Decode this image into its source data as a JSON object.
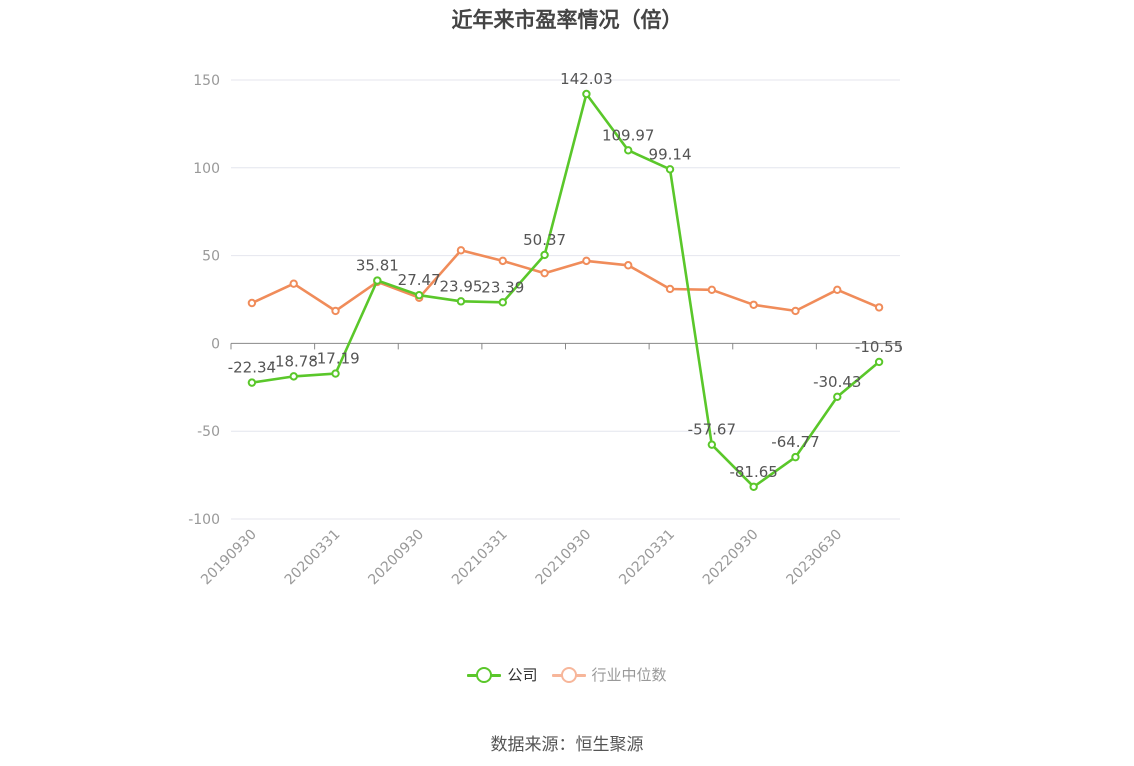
{
  "title": "近年来市盈率情况（倍）",
  "source_note": "数据来源：恒生聚源",
  "colors": {
    "company": "#5ac72a",
    "industry": "#f08c5a",
    "industry_legend": "#f7b69a",
    "axis_text": "#999999",
    "grid": "#e4e6ee",
    "data_label": "#555555"
  },
  "legend": [
    {
      "label": "公司",
      "color": "#5ac72a"
    },
    {
      "label": "行业中位数",
      "color": "#f7b69a"
    }
  ],
  "chart_data": {
    "type": "line",
    "title": "近年来市盈率情况（倍）",
    "xlabel": "",
    "ylabel": "",
    "ylim": [
      -100,
      150
    ],
    "yticks": [
      150,
      100,
      50,
      0,
      -50,
      -100
    ],
    "grid": true,
    "legend_position": "bottom",
    "x_tick_labels": [
      "20190930",
      "20200331",
      "20200930",
      "20210331",
      "20210930",
      "20220331",
      "20220930",
      "20230630"
    ],
    "series": [
      {
        "name": "公司",
        "values": [
          -22.34,
          -18.78,
          -17.19,
          35.81,
          27.47,
          23.95,
          23.39,
          50.37,
          142.03,
          109.97,
          99.14,
          -57.67,
          -81.65,
          -64.77,
          -30.43,
          -10.55
        ],
        "labels": [
          "-22.34",
          "-18.78",
          "-17.19",
          "35.81",
          "27.47",
          "23.95",
          "23.39",
          "50.37",
          "142.03",
          "109.97",
          "99.14",
          "-57.67",
          "-81.65",
          "-64.77",
          "-30.43",
          "-10.55"
        ]
      },
      {
        "name": "行业中位数",
        "values": [
          23,
          34,
          18.5,
          35,
          26,
          53,
          47,
          40,
          47,
          44.5,
          31,
          30.5,
          22,
          18.5,
          30.5,
          20.5
        ]
      }
    ]
  }
}
